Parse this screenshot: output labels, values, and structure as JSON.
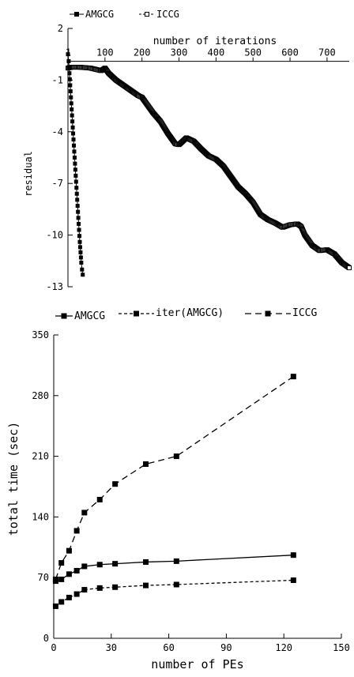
{
  "chart_data": [
    {
      "type": "line",
      "title": "",
      "xlabel": "number of iterations",
      "ylabel": "residual",
      "xlim": [
        0,
        760
      ],
      "ylim": [
        -13,
        2
      ],
      "x_ticks": [
        1,
        100,
        200,
        300,
        400,
        500,
        600,
        700
      ],
      "x_tick_labels": [
        "1",
        "100",
        "200",
        "300",
        "400",
        "500",
        "600",
        "700"
      ],
      "y_ticks": [
        2,
        -1,
        -4,
        -7,
        -10,
        -13
      ],
      "y_tick_labels": [
        "2",
        "-1",
        "-4",
        "-7",
        "-10",
        "-13"
      ],
      "legend_position": "top-left",
      "series": [
        {
          "name": "AMGCG",
          "marker": "filled-square",
          "x": [
            0,
            2,
            4,
            6,
            8,
            10,
            12,
            14,
            16,
            18,
            20,
            22,
            24,
            26,
            28,
            30,
            32,
            34,
            36,
            38,
            40
          ],
          "y": [
            0.5,
            0.1,
            -0.6,
            -1.3,
            -2.0,
            -2.7,
            -3.4,
            -4.1,
            -4.8,
            -5.5,
            -6.2,
            -6.9,
            -7.6,
            -8.3,
            -9.0,
            -9.7,
            -10.4,
            -11.0,
            -11.6,
            -12.0,
            -12.3
          ]
        },
        {
          "name": "ICCG",
          "marker": "open-square",
          "x": [
            0,
            10,
            30,
            60,
            90,
            100,
            110,
            130,
            150,
            170,
            190,
            200,
            210,
            230,
            250,
            270,
            290,
            300,
            320,
            340,
            360,
            380,
            400,
            420,
            440,
            460,
            480,
            500,
            520,
            540,
            560,
            580,
            600,
            620,
            630,
            640,
            660,
            680,
            700,
            720,
            740,
            760
          ],
          "y": [
            -0.3,
            -0.25,
            -0.25,
            -0.3,
            -0.45,
            -0.3,
            -0.6,
            -1.0,
            -1.3,
            -1.6,
            -1.9,
            -2.0,
            -2.3,
            -2.9,
            -3.4,
            -4.1,
            -4.7,
            -4.75,
            -4.35,
            -4.55,
            -5.0,
            -5.4,
            -5.6,
            -6.0,
            -6.6,
            -7.2,
            -7.6,
            -8.1,
            -8.8,
            -9.1,
            -9.3,
            -9.55,
            -9.4,
            -9.35,
            -9.5,
            -10.0,
            -10.6,
            -10.9,
            -10.85,
            -11.1,
            -11.6,
            -11.9
          ]
        }
      ]
    },
    {
      "type": "line",
      "title": "",
      "xlabel": "number of PEs",
      "ylabel": "total time (sec)",
      "xlim": [
        0,
        150
      ],
      "ylim": [
        0,
        350
      ],
      "x_ticks": [
        0,
        30,
        60,
        90,
        120,
        150
      ],
      "x_tick_labels": [
        "0",
        "30",
        "60",
        "90",
        "120",
        "150"
      ],
      "y_ticks": [
        0,
        70,
        140,
        210,
        280,
        350
      ],
      "y_tick_labels": [
        "0",
        "70",
        "140",
        "210",
        "280",
        "350"
      ],
      "legend_position": "top",
      "x": [
        1,
        4,
        8,
        12,
        16,
        24,
        32,
        48,
        64,
        125
      ],
      "series": [
        {
          "name": "AMGCG",
          "dash": "solid",
          "values": [
            66,
            68,
            74,
            78,
            83,
            85,
            86,
            88,
            89,
            96
          ]
        },
        {
          "name": "iter(AMGCG)",
          "dash": "short-dash",
          "values": [
            37,
            42,
            47,
            51,
            56,
            58,
            59,
            61,
            62,
            67
          ]
        },
        {
          "name": "ICCG",
          "dash": "long-dash",
          "values": [
            68,
            87,
            101,
            124,
            145,
            160,
            178,
            201,
            210,
            302
          ]
        }
      ]
    }
  ]
}
